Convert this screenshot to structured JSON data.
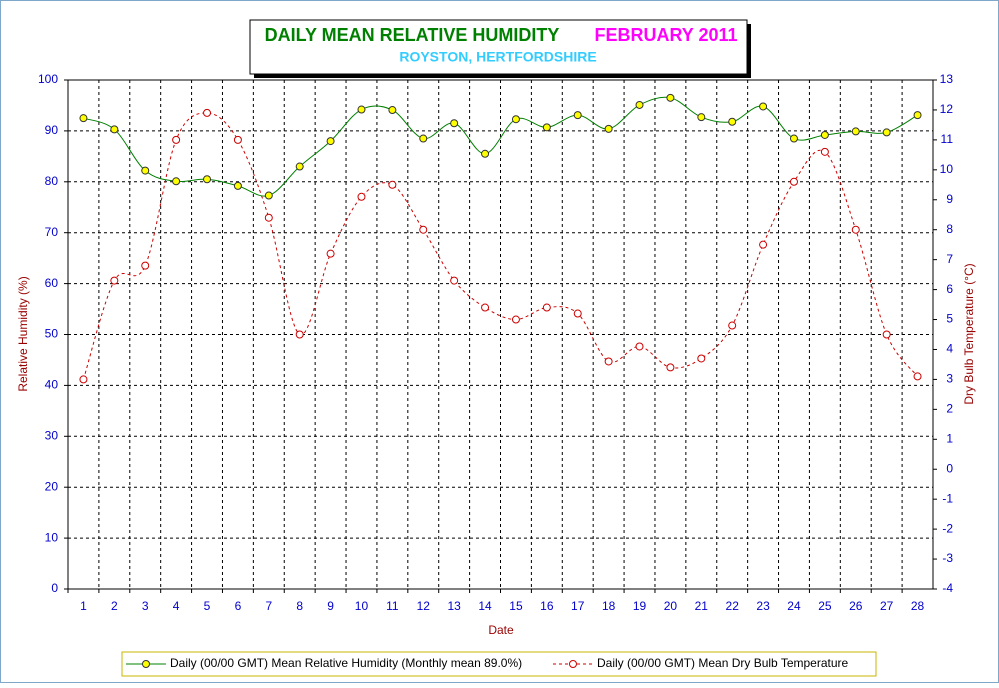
{
  "chart_data": {
    "type": "line",
    "title": "DAILY MEAN RELATIVE HUMIDITY",
    "title_period": "FEBRUARY 2011",
    "subtitle": "ROYSTON, HERTFORDSHIRE",
    "x_label": "Date",
    "y_label": "Relative Humidity (%)",
    "y2_label": "Dry Bulb Temperature (°C)",
    "categories": [
      "1",
      "2",
      "3",
      "4",
      "5",
      "6",
      "7",
      "8",
      "9",
      "10",
      "11",
      "12",
      "13",
      "14",
      "15",
      "16",
      "17",
      "18",
      "19",
      "20",
      "21",
      "22",
      "23",
      "24",
      "25",
      "26",
      "27",
      "28"
    ],
    "series": [
      {
        "name": "Daily (00/00 GMT) Mean Relative Humidity (Monthly mean 89.0%)",
        "color": "#008000",
        "marker_color": "#ffff00",
        "axis": "y",
        "values": [
          92.5,
          90.3,
          82.2,
          80.1,
          80.5,
          79.2,
          77.3,
          83.0,
          88.0,
          94.2,
          94.1,
          88.5,
          91.5,
          85.5,
          92.3,
          90.7,
          93.1,
          90.4,
          95.1,
          96.5,
          92.7,
          91.8,
          94.8,
          88.5,
          89.2,
          89.9,
          89.7,
          93.1
        ]
      },
      {
        "name": "Daily (00/00 GMT) Mean Dry Bulb Temperature",
        "color": "#cc0000",
        "marker_color": "#ffffff",
        "axis": "y2",
        "values": [
          3.0,
          6.3,
          6.8,
          11.0,
          11.9,
          11.0,
          8.4,
          4.5,
          7.2,
          9.1,
          9.5,
          8.0,
          6.3,
          5.4,
          5.0,
          5.4,
          5.2,
          3.6,
          4.1,
          3.4,
          3.7,
          4.8,
          7.5,
          9.6,
          10.6,
          8.0,
          4.5,
          3.1
        ]
      }
    ],
    "ylim": [
      0,
      100
    ],
    "yticks": [
      0,
      10,
      20,
      30,
      40,
      50,
      60,
      70,
      80,
      90,
      100
    ],
    "y2lim": [
      -4,
      13
    ],
    "y2ticks": [
      -4,
      -3,
      -2,
      -1,
      0,
      1,
      2,
      3,
      4,
      5,
      6,
      7,
      8,
      9,
      10,
      11,
      12,
      13
    ],
    "grid": true
  }
}
